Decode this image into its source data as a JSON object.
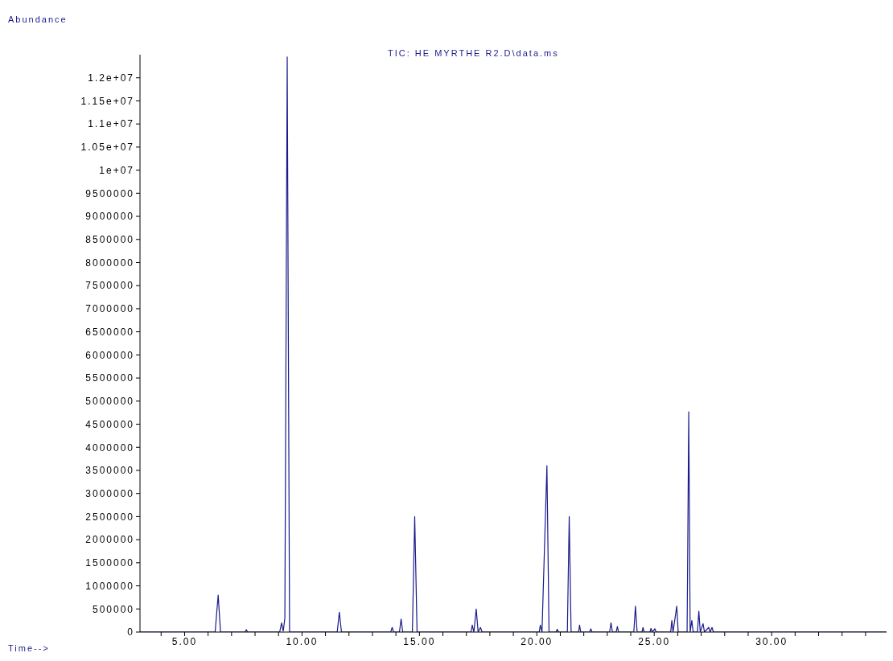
{
  "chart_data": {
    "type": "line",
    "title": "TIC: HE MYRTHE R2.D\\data.ms",
    "xlabel": "Time-->",
    "ylabel": "Abundance",
    "color": "#1a1a8c",
    "grid": false,
    "legend": false,
    "marker": "none",
    "line_style": "solid",
    "xlim": [
      3.1,
      35.1
    ],
    "ylim": [
      0,
      12500000
    ],
    "xticks": [
      {
        "value": 4,
        "label": null
      },
      {
        "value": 5,
        "label": "5.00"
      },
      {
        "value": 6,
        "label": null
      },
      {
        "value": 7,
        "label": null
      },
      {
        "value": 8,
        "label": null
      },
      {
        "value": 9,
        "label": null
      },
      {
        "value": 10,
        "label": "10.00"
      },
      {
        "value": 11,
        "label": null
      },
      {
        "value": 12,
        "label": null
      },
      {
        "value": 13,
        "label": null
      },
      {
        "value": 14,
        "label": null
      },
      {
        "value": 15,
        "label": "15.00"
      },
      {
        "value": 16,
        "label": null
      },
      {
        "value": 17,
        "label": null
      },
      {
        "value": 18,
        "label": null
      },
      {
        "value": 19,
        "label": null
      },
      {
        "value": 20,
        "label": "20.00"
      },
      {
        "value": 21,
        "label": null
      },
      {
        "value": 22,
        "label": null
      },
      {
        "value": 23,
        "label": null
      },
      {
        "value": 24,
        "label": null
      },
      {
        "value": 25,
        "label": "25.00"
      },
      {
        "value": 26,
        "label": null
      },
      {
        "value": 27,
        "label": null
      },
      {
        "value": 28,
        "label": null
      },
      {
        "value": 29,
        "label": null
      },
      {
        "value": 30,
        "label": "30.00"
      },
      {
        "value": 31,
        "label": null
      },
      {
        "value": 32,
        "label": null
      },
      {
        "value": 33,
        "label": null
      },
      {
        "value": 34,
        "label": null
      },
      {
        "value": 35,
        "label": null
      }
    ],
    "yticks": [
      0,
      500000,
      1000000,
      1500000,
      2000000,
      2500000,
      3000000,
      3500000,
      4000000,
      4500000,
      5000000,
      5500000,
      6000000,
      6500000,
      7000000,
      7500000,
      8000000,
      8500000,
      9000000,
      9500000,
      {
        "value": 10000000,
        "label": "1e+07"
      },
      {
        "value": 10500000,
        "label": "1.05e+07"
      },
      {
        "value": 11000000,
        "label": "1.1e+07"
      },
      {
        "value": 11500000,
        "label": "1.15e+07"
      },
      {
        "value": 12000000,
        "label": "1.2e+07"
      }
    ],
    "x": [
      3.1,
      6.3,
      6.43,
      6.53,
      7.58,
      7.63,
      7.68,
      9.05,
      9.13,
      9.2,
      9.27,
      9.37,
      9.47,
      11.5,
      11.59,
      11.68,
      13.78,
      13.84,
      13.9,
      14.15,
      14.22,
      14.29,
      14.7,
      14.8,
      14.9,
      17.2,
      17.25,
      17.32,
      17.42,
      17.5,
      17.6,
      17.67,
      20.1,
      20.15,
      20.22,
      20.43,
      20.52,
      20.82,
      20.87,
      20.92,
      21.3,
      21.38,
      21.46,
      21.78,
      21.82,
      21.87,
      22.25,
      22.3,
      22.35,
      23.1,
      23.16,
      23.22,
      23.38,
      23.43,
      23.48,
      24.13,
      24.2,
      24.27,
      24.48,
      24.52,
      24.57,
      24.82,
      24.86,
      24.91,
      25.03,
      25.08,
      25.7,
      25.75,
      25.8,
      25.96,
      26.02,
      26.4,
      26.47,
      26.53,
      26.6,
      26.66,
      26.84,
      26.9,
      26.96,
      27.08,
      27.14,
      27.32,
      27.38,
      27.46,
      27.52,
      35.1
    ],
    "values": [
      0,
      0,
      800000,
      0,
      0,
      50000,
      0,
      0,
      200000,
      20000,
      300000,
      12450000,
      0,
      0,
      430000,
      0,
      0,
      100000,
      0,
      0,
      280000,
      0,
      0,
      2500000,
      0,
      0,
      150000,
      0,
      500000,
      0,
      100000,
      0,
      0,
      150000,
      0,
      3600000,
      0,
      0,
      60000,
      0,
      0,
      2500000,
      0,
      0,
      150000,
      0,
      0,
      70000,
      0,
      0,
      200000,
      0,
      0,
      120000,
      0,
      0,
      560000,
      0,
      0,
      100000,
      0,
      0,
      80000,
      0,
      70000,
      0,
      0,
      250000,
      0,
      560000,
      0,
      0,
      4770000,
      0,
      250000,
      0,
      0,
      450000,
      0,
      180000,
      0,
      100000,
      0,
      100000,
      0,
      0
    ]
  }
}
